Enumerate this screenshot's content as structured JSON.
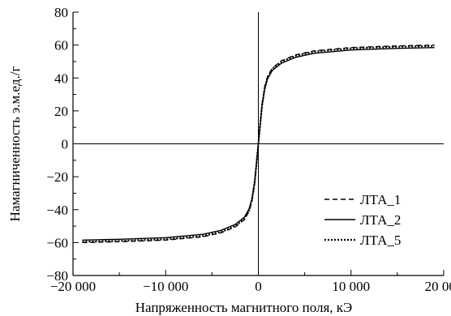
{
  "chart_data": {
    "type": "line",
    "xlabel": "Напряженность магнитного поля, кЭ",
    "ylabel": "Намагниченность э.м.ед./г",
    "xlim": [
      -20000,
      20000
    ],
    "ylim": [
      -80,
      80
    ],
    "x_ticks": [
      -20000,
      -10000,
      0,
      10000,
      20000
    ],
    "x_tick_labels": [
      "−20 000",
      "−10 000",
      "0",
      "10 000",
      "20 000"
    ],
    "y_ticks": [
      -80,
      -60,
      -40,
      -20,
      0,
      20,
      40,
      60,
      80
    ],
    "y_tick_labels": [
      "−80",
      "−60",
      "−40",
      "−20",
      "0",
      "20",
      "40",
      "60",
      "80"
    ],
    "legend_position": "bottom-right",
    "series": [
      {
        "name": "ЛТА_1",
        "line_style": "dashed",
        "x": [
          -19000,
          -15000,
          -10000,
          -6000,
          -4000,
          -2500,
          -1500,
          -1000,
          -700,
          -400,
          -200,
          -100,
          0,
          100,
          200,
          400,
          700,
          1000,
          1500,
          2500,
          4000,
          6000,
          10000,
          15000,
          19000
        ],
        "y": [
          -60,
          -59.5,
          -58.5,
          -56.5,
          -54,
          -50.5,
          -46,
          -41,
          -35,
          -24,
          -12,
          -6,
          0,
          6,
          12,
          24,
          35,
          41,
          46,
          50.5,
          54,
          56.5,
          58.5,
          59.5,
          60
        ]
      },
      {
        "name": "ЛТА_2",
        "line_style": "solid",
        "x": [
          -19000,
          -15000,
          -10000,
          -6000,
          -4000,
          -2500,
          -1500,
          -1000,
          -700,
          -400,
          -200,
          -100,
          0,
          100,
          200,
          400,
          700,
          1000,
          1500,
          2500,
          4000,
          6000,
          10000,
          15000,
          19000
        ],
        "y": [
          -58.5,
          -58,
          -57,
          -55,
          -52.5,
          -49,
          -44.5,
          -39.5,
          -33.5,
          -23,
          -11.5,
          -5.8,
          0,
          5.8,
          11.5,
          23,
          33.5,
          39.5,
          44.5,
          49,
          52.5,
          55,
          57,
          58,
          58.5
        ]
      },
      {
        "name": "ЛТА_5",
        "line_style": "dotted",
        "x": [
          -19000,
          -15000,
          -10000,
          -6000,
          -4000,
          -2500,
          -1500,
          -1000,
          -700,
          -400,
          -200,
          -100,
          0,
          100,
          200,
          400,
          700,
          1000,
          1500,
          2500,
          4000,
          6000,
          10000,
          15000,
          19000
        ],
        "y": [
          -59.5,
          -59,
          -58,
          -56,
          -53.5,
          -50,
          -45.5,
          -40.5,
          -34.5,
          -23.5,
          -12,
          -6,
          0,
          6,
          12,
          23.5,
          34.5,
          40.5,
          45.5,
          50,
          53.5,
          56,
          58,
          59,
          59.5
        ]
      }
    ]
  }
}
